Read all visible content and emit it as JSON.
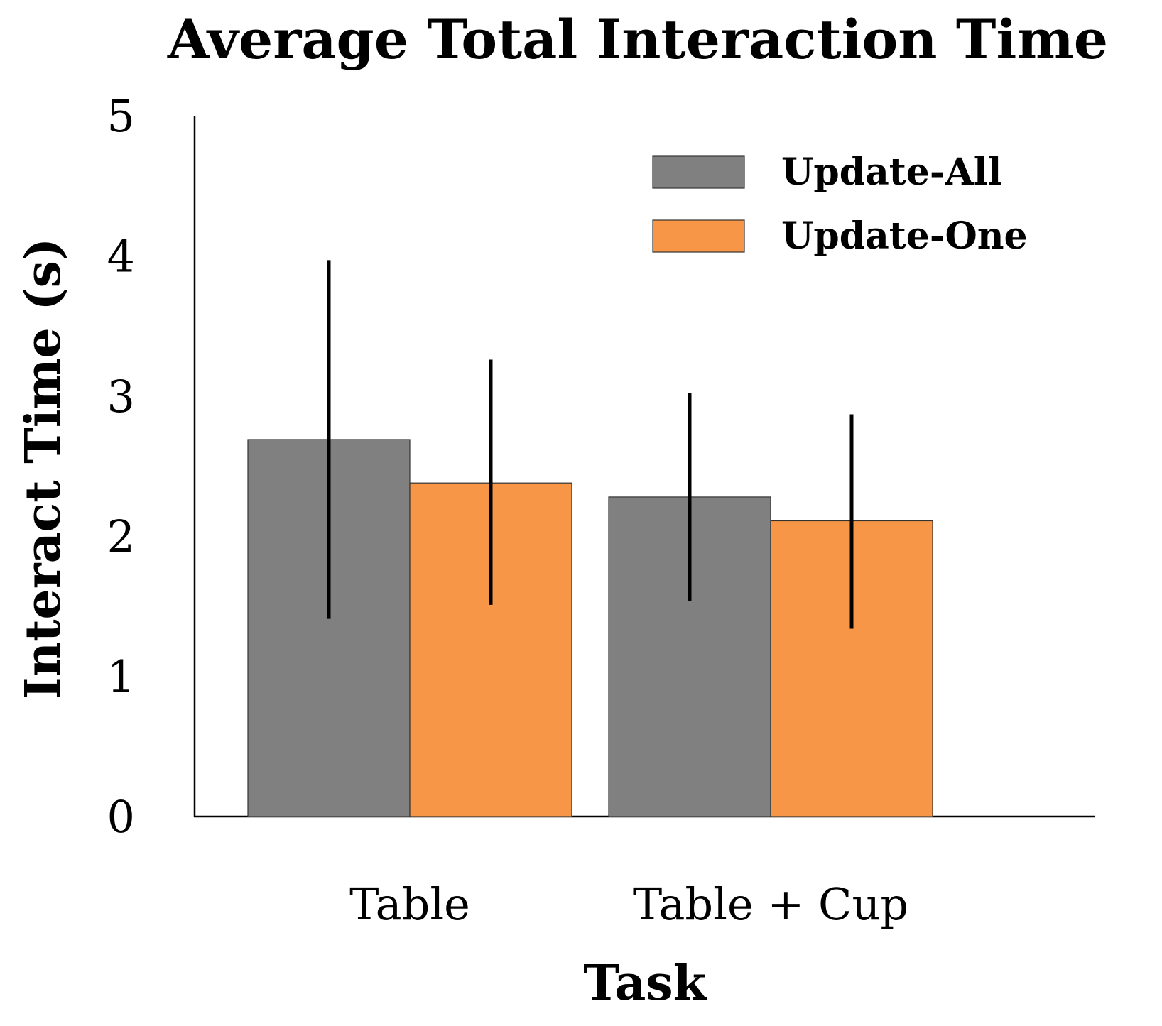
{
  "chart_data": {
    "type": "bar",
    "title": "Average Total Interaction Time",
    "xlabel": "Task",
    "ylabel": "Interact Time (s)",
    "categories": [
      "Table",
      "Table + Cup"
    ],
    "ylim": [
      0,
      5
    ],
    "yticks": [
      "0",
      "1",
      "2",
      "3",
      "4",
      "5"
    ],
    "grid": false,
    "legend_position": "top-right",
    "series": [
      {
        "name": "Update-All",
        "color": "#808080",
        "values": [
          2.69,
          2.28
        ],
        "error_low": [
          1.41,
          1.54
        ],
        "error_high": [
          3.97,
          3.02
        ]
      },
      {
        "name": "Update-One",
        "color": "#f79646",
        "values": [
          2.38,
          2.11
        ],
        "error_low": [
          1.51,
          1.34
        ],
        "error_high": [
          3.26,
          2.87
        ]
      }
    ]
  }
}
